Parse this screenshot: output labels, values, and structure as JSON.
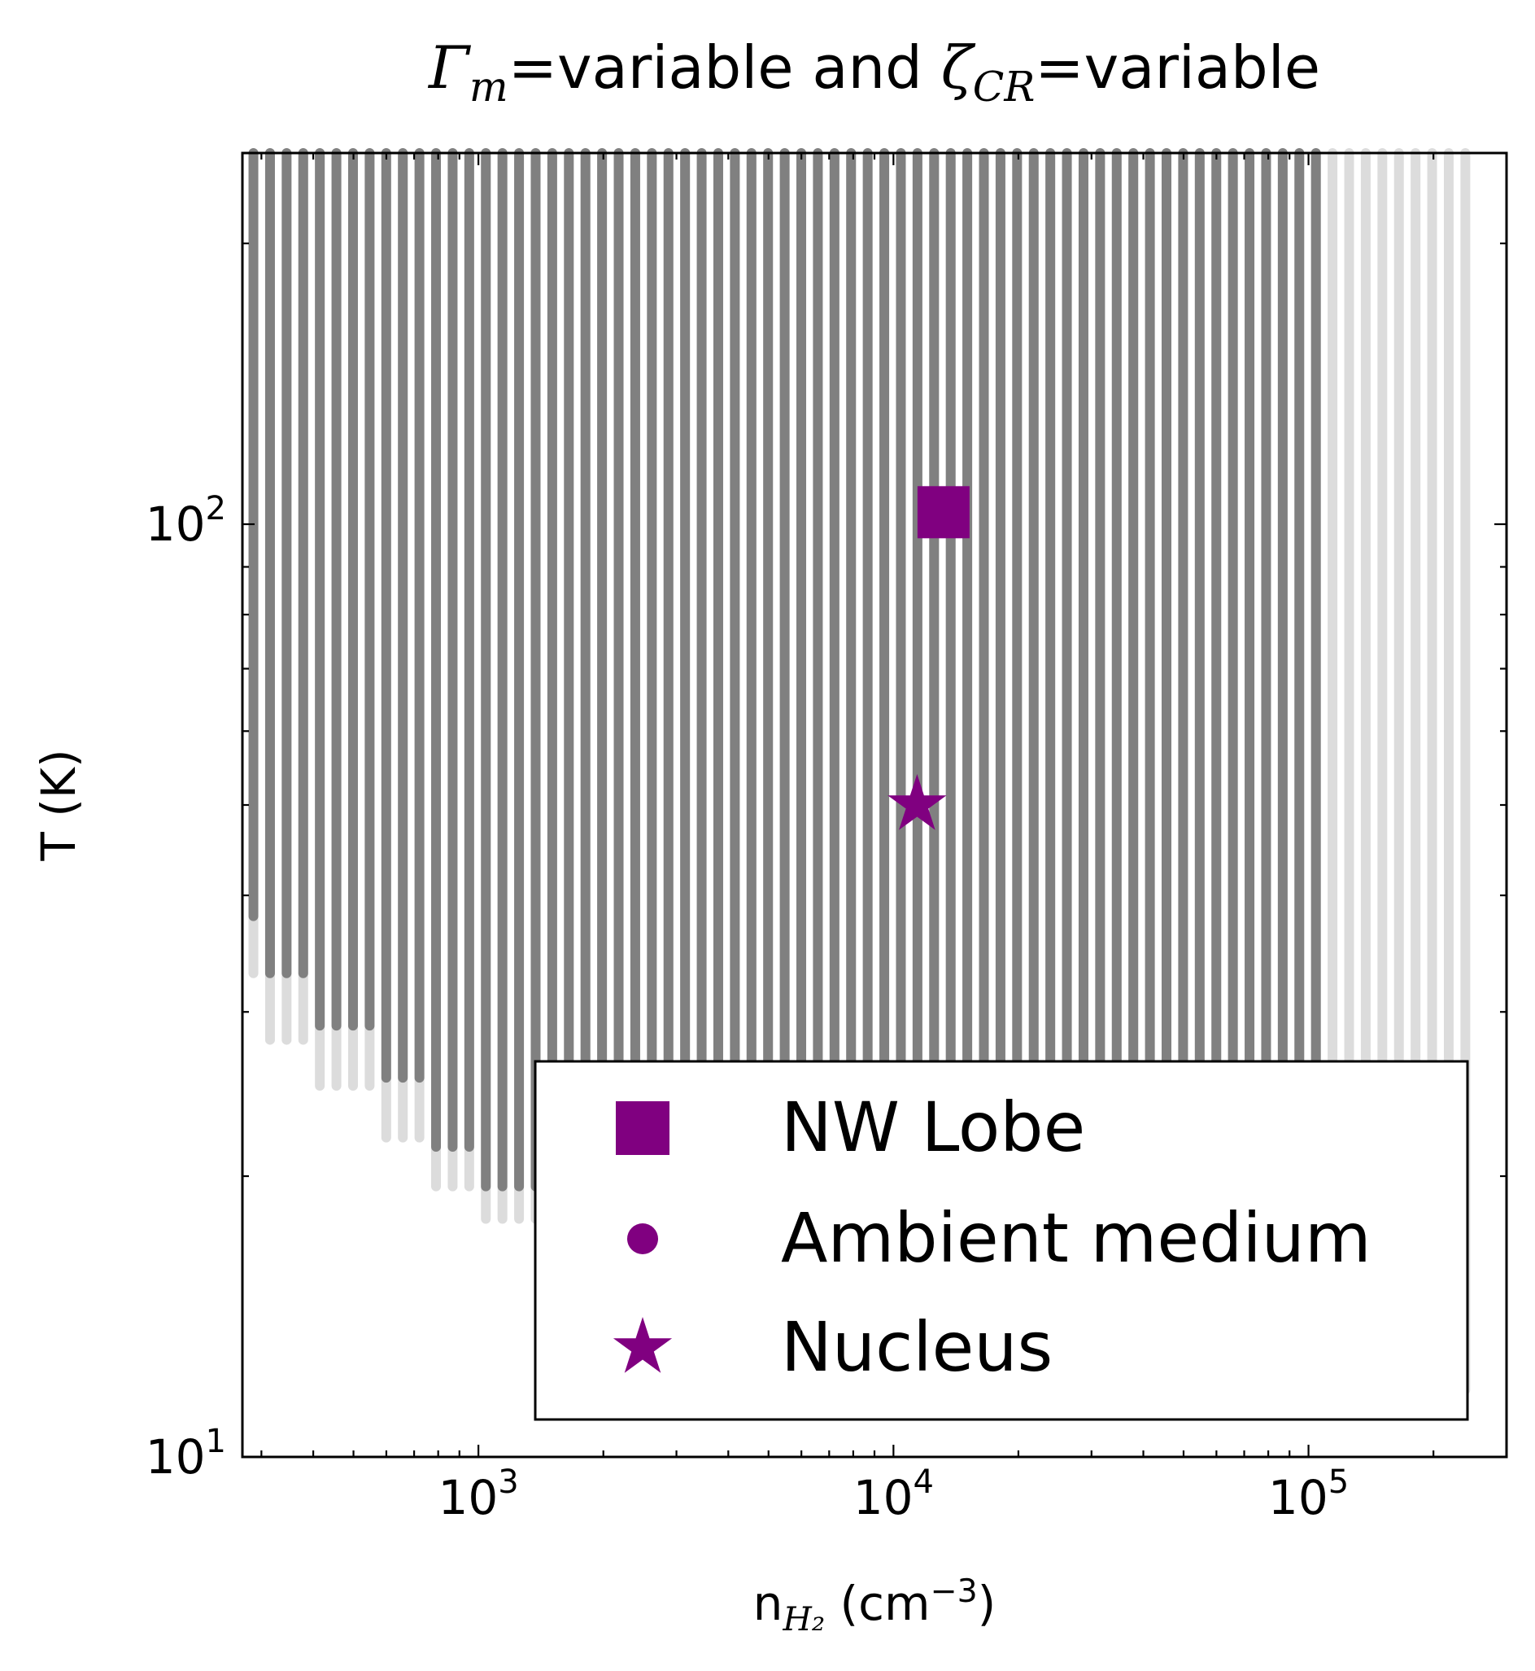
{
  "chart_data": {
    "type": "scatter",
    "title": {
      "parts": [
        {
          "text": "Γ",
          "style": "math"
        },
        {
          "text": "m",
          "style": "math-sub"
        },
        {
          "text": "=variable and ",
          "style": "plain"
        },
        {
          "text": "ζ",
          "style": "math"
        },
        {
          "text": "CR",
          "style": "math-sub"
        },
        {
          "text": "=variable",
          "style": "plain"
        }
      ]
    },
    "xlabel": {
      "parts": [
        {
          "text": "n",
          "style": "plain"
        },
        {
          "text": "H₂",
          "style": "math-sub"
        },
        {
          "text": " (cm",
          "style": "plain"
        },
        {
          "text": "−3",
          "style": "sup"
        },
        {
          "text": ")",
          "style": "plain"
        }
      ]
    },
    "ylabel": "T (K)",
    "xscale": "log",
    "yscale": "log",
    "xlim": [
      270,
      300000
    ],
    "ylim": [
      10,
      250
    ],
    "xticks": [
      {
        "value": 1000,
        "base": "10",
        "exp": "3"
      },
      {
        "value": 10000,
        "base": "10",
        "exp": "4"
      },
      {
        "value": 100000,
        "base": "10",
        "exp": "5"
      }
    ],
    "yticks": [
      {
        "value": 10,
        "base": "10",
        "exp": "1"
      },
      {
        "value": 100,
        "base": "10",
        "exp": "2"
      }
    ],
    "grid": false,
    "model_grid": {
      "description": "model grid points; dark = solutions consistent with observations, light = rejected",
      "n_min": 287,
      "n_step_log10": 0.04,
      "n_count": 78,
      "dark_n_max": 113000,
      "light_n_max": 250000,
      "column_temperature_ranges": [
        {
          "n_max": 300,
          "light_t_min": 33,
          "dark_t_min": 38
        },
        {
          "n_max": 400,
          "light_t_min": 28,
          "dark_t_min": 33
        },
        {
          "n_max": 550,
          "light_t_min": 25,
          "dark_t_min": 29
        },
        {
          "n_max": 750,
          "light_t_min": 22,
          "dark_t_min": 25.5
        },
        {
          "n_max": 1000,
          "light_t_min": 19.5,
          "dark_t_min": 21.5
        },
        {
          "n_max": 1400,
          "light_t_min": 18,
          "dark_t_min": 19.5
        },
        {
          "n_max": 113000,
          "light_t_min": 18,
          "dark_t_min": 18
        },
        {
          "n_max": 250000,
          "light_t_min": 11.8,
          "dark_t_min": null
        }
      ],
      "t_max": 250,
      "colors": {
        "accepted": "#808080",
        "rejected": "#dcdcdc"
      }
    },
    "series": [
      {
        "name": "NW Lobe",
        "marker": "square",
        "color": "#800080",
        "x": 13200,
        "y": 103
      },
      {
        "name": "Ambient medium",
        "marker": "circle",
        "color": "#800080",
        "x": null,
        "y": null
      },
      {
        "name": "Nucleus",
        "marker": "star",
        "color": "#800080",
        "x": 11400,
        "y": 50
      }
    ],
    "legend": {
      "position": "lower-right"
    }
  }
}
